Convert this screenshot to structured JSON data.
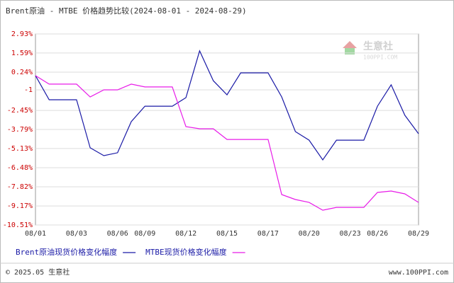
{
  "chart_data": {
    "type": "line",
    "title": "Brent原油 - MTBE 价格趋势比较(2024-08-01 - 2024-08-29)",
    "categories": [
      "08/01",
      null,
      null,
      "08/03",
      null,
      null,
      "08/06",
      null,
      "08/09",
      null,
      null,
      "08/12",
      null,
      null,
      "08/15",
      null,
      null,
      "08/17",
      null,
      null,
      "08/20",
      null,
      null,
      "08/23",
      null,
      "08/26",
      null,
      null,
      "08/29"
    ],
    "series": [
      {
        "name": "Brent原油现货价格变化幅度",
        "color": "#1a1aa6",
        "values": [
          0,
          -1.7,
          -1.7,
          -1.7,
          -5.08,
          -5.63,
          -5.43,
          -3.24,
          -2.15,
          -2.15,
          -2.15,
          -1.55,
          1.74,
          -0.36,
          -1.35,
          0.19,
          0.19,
          0.19,
          -1.5,
          -3.94,
          -4.54,
          -5.93,
          -4.54,
          -4.54,
          -4.54,
          -2.15,
          -0.65,
          -2.79,
          -4.09
        ]
      },
      {
        "name": "MTBE现货价格变化幅度",
        "color": "#e81ce8",
        "values": [
          0,
          -0.6,
          -0.6,
          -0.6,
          -1.5,
          -1.0,
          -1.0,
          -0.6,
          -0.8,
          -0.8,
          -0.8,
          -3.59,
          -3.74,
          -3.74,
          -4.49,
          -4.49,
          -4.49,
          -4.49,
          -8.37,
          -8.72,
          -8.92,
          -9.47,
          -9.27,
          -9.27,
          -9.27,
          -8.22,
          -8.12,
          -8.32,
          -8.92
        ]
      }
    ],
    "ylim": [
      -10.51,
      2.93
    ],
    "yticks": [
      {
        "value": 2.93,
        "label": "2.93%"
      },
      {
        "value": 1.59,
        "label": "1.59%"
      },
      {
        "value": 0.24,
        "label": "0.24%"
      },
      -1,
      {
        "value": -2.45,
        "label": "-2.45%"
      },
      {
        "value": -3.79,
        "label": "-3.79%"
      },
      {
        "value": -5.13,
        "label": "-5.13%"
      },
      {
        "value": -6.48,
        "label": "-6.48%"
      },
      {
        "value": -7.82,
        "label": "-7.82%"
      },
      {
        "value": -9.17,
        "label": "-9.17%"
      },
      {
        "value": -10.51,
        "label": "-10.51%"
      }
    ],
    "grid": true,
    "legend": "bottom"
  },
  "watermark": {
    "name": "生意社",
    "url": "100PPI.COM"
  },
  "footer": {
    "left": "© 2025.05 生意社",
    "right": "www.100PPI.com"
  }
}
